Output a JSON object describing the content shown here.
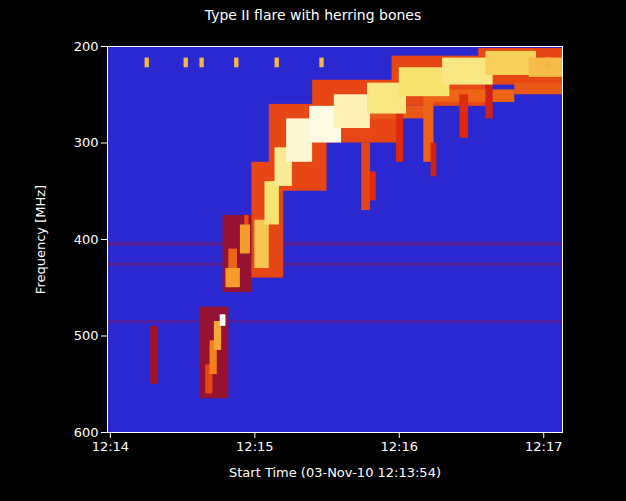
{
  "chart_data": {
    "type": "heatmap",
    "title": "Type II flare with herring bones",
    "xlabel": "Start Time (03-Nov-10 12:13:54)",
    "ylabel": "Frequency [MHz]",
    "xlim": [
      13.98,
      17.13
    ],
    "ylim": [
      200,
      600
    ],
    "xticks": [
      {
        "value": 14,
        "label": "12:14"
      },
      {
        "value": 15,
        "label": "12:15"
      },
      {
        "value": 16,
        "label": "12:16"
      },
      {
        "value": 17,
        "label": "12:17"
      }
    ],
    "yticks": [
      200,
      300,
      400,
      500,
      600
    ],
    "zlim": [
      0,
      100
    ],
    "cells": [
      {
        "t0": 13.98,
        "t1": 17.13,
        "f0": 403,
        "f1": 407,
        "z": 12
      },
      {
        "t0": 13.98,
        "t1": 17.13,
        "f0": 424,
        "f1": 428,
        "z": 10
      },
      {
        "t0": 13.98,
        "t1": 17.13,
        "f0": 484,
        "f1": 487,
        "z": 10
      },
      {
        "t0": 14.28,
        "t1": 14.33,
        "f0": 490,
        "f1": 550,
        "z": 35
      },
      {
        "t0": 14.62,
        "t1": 14.82,
        "f0": 470,
        "f1": 565,
        "z": 30
      },
      {
        "t0": 14.78,
        "t1": 14.98,
        "f0": 375,
        "f1": 455,
        "z": 30
      },
      {
        "t0": 14.98,
        "t1": 15.2,
        "f0": 320,
        "f1": 440,
        "z": 55
      },
      {
        "t0": 15.1,
        "t1": 15.5,
        "f0": 260,
        "f1": 350,
        "z": 55
      },
      {
        "t0": 15.4,
        "t1": 16.0,
        "f0": 235,
        "f1": 300,
        "z": 55
      },
      {
        "t0": 15.95,
        "t1": 16.6,
        "f0": 210,
        "f1": 262,
        "z": 55
      },
      {
        "t0": 16.55,
        "t1": 17.13,
        "f0": 202,
        "f1": 240,
        "z": 55
      },
      {
        "t0": 15.6,
        "t1": 16.2,
        "f0": 262,
        "f1": 275,
        "z": 58
      },
      {
        "t0": 16.2,
        "t1": 16.8,
        "f0": 245,
        "f1": 258,
        "z": 60
      },
      {
        "t0": 16.8,
        "t1": 17.13,
        "f0": 238,
        "f1": 250,
        "z": 58
      },
      {
        "t0": 15.74,
        "t1": 15.8,
        "f0": 300,
        "f1": 370,
        "z": 55
      },
      {
        "t0": 15.8,
        "t1": 15.84,
        "f0": 330,
        "f1": 360,
        "z": 50
      },
      {
        "t0": 15.98,
        "t1": 16.03,
        "f0": 270,
        "f1": 320,
        "z": 50
      },
      {
        "t0": 16.17,
        "t1": 16.24,
        "f0": 250,
        "f1": 320,
        "z": 60
      },
      {
        "t0": 16.22,
        "t1": 16.26,
        "f0": 300,
        "f1": 335,
        "z": 45
      },
      {
        "t0": 16.42,
        "t1": 16.48,
        "f0": 250,
        "f1": 295,
        "z": 50
      },
      {
        "t0": 16.6,
        "t1": 16.65,
        "f0": 240,
        "f1": 275,
        "z": 45
      },
      {
        "t0": 14.66,
        "t1": 14.71,
        "f0": 530,
        "f1": 560,
        "z": 55
      },
      {
        "t0": 14.69,
        "t1": 14.74,
        "f0": 505,
        "f1": 540,
        "z": 65
      },
      {
        "t0": 14.72,
        "t1": 14.77,
        "f0": 485,
        "f1": 515,
        "z": 72
      },
      {
        "t0": 14.76,
        "t1": 14.8,
        "f0": 478,
        "f1": 490,
        "z": 100
      },
      {
        "t0": 14.82,
        "t1": 14.88,
        "f0": 410,
        "f1": 432,
        "z": 60
      },
      {
        "t0": 14.8,
        "t1": 14.9,
        "f0": 430,
        "f1": 450,
        "z": 70
      },
      {
        "t0": 14.93,
        "t1": 14.96,
        "f0": 375,
        "f1": 390,
        "z": 55
      },
      {
        "t0": 14.9,
        "t1": 14.97,
        "f0": 385,
        "f1": 415,
        "z": 70
      },
      {
        "t0": 15.0,
        "t1": 15.1,
        "f0": 380,
        "f1": 430,
        "z": 78
      },
      {
        "t0": 15.07,
        "t1": 15.17,
        "f0": 340,
        "f1": 385,
        "z": 84
      },
      {
        "t0": 15.14,
        "t1": 15.26,
        "f0": 305,
        "f1": 345,
        "z": 88
      },
      {
        "t0": 15.22,
        "t1": 15.4,
        "f0": 275,
        "f1": 320,
        "z": 95
      },
      {
        "t0": 15.38,
        "t1": 15.6,
        "f0": 262,
        "f1": 300,
        "z": 97
      },
      {
        "t0": 15.55,
        "t1": 15.8,
        "f0": 250,
        "f1": 285,
        "z": 92
      },
      {
        "t0": 15.78,
        "t1": 16.05,
        "f0": 238,
        "f1": 270,
        "z": 86
      },
      {
        "t0": 16.0,
        "t1": 16.35,
        "f0": 222,
        "f1": 252,
        "z": 84
      },
      {
        "t0": 16.3,
        "t1": 16.65,
        "f0": 212,
        "f1": 240,
        "z": 86
      },
      {
        "t0": 16.6,
        "t1": 16.95,
        "f0": 205,
        "f1": 230,
        "z": 80
      },
      {
        "t0": 16.9,
        "t1": 17.13,
        "f0": 212,
        "f1": 232,
        "z": 76
      },
      {
        "t0": 14.24,
        "t1": 14.27,
        "f0": 212,
        "f1": 222,
        "z": 75
      },
      {
        "t0": 14.51,
        "t1": 14.54,
        "f0": 212,
        "f1": 222,
        "z": 75
      },
      {
        "t0": 14.62,
        "t1": 14.65,
        "f0": 212,
        "f1": 222,
        "z": 75
      },
      {
        "t0": 14.86,
        "t1": 14.89,
        "f0": 212,
        "f1": 222,
        "z": 75
      },
      {
        "t0": 15.14,
        "t1": 15.17,
        "f0": 212,
        "f1": 222,
        "z": 75
      },
      {
        "t0": 15.45,
        "t1": 15.48,
        "f0": 212,
        "f1": 222,
        "z": 75
      },
      {
        "t0": 17.02,
        "t1": 17.05,
        "f0": 212,
        "f1": 222,
        "z": 75
      }
    ]
  }
}
